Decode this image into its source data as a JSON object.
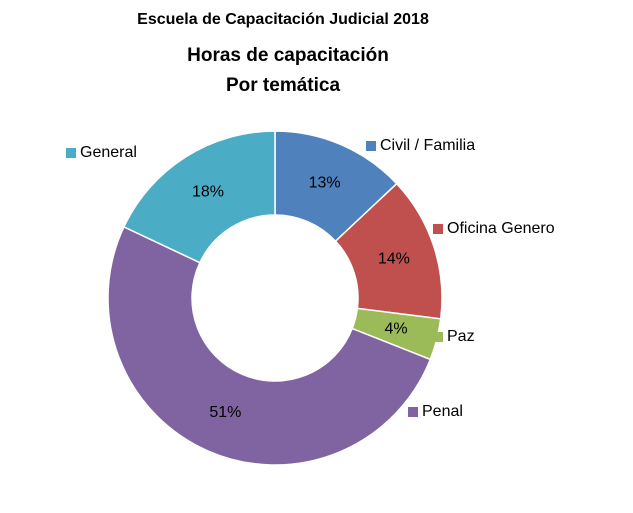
{
  "chart_data": {
    "type": "donut",
    "title": "Escuela de Capacitación Judicial 2018",
    "subtitle": [
      "Horas de capacitación",
      "Por temática"
    ],
    "categories": [
      "Civil / Familia",
      "Oficina Genero",
      "Paz",
      "Penal",
      "General"
    ],
    "values": [
      13,
      14,
      4,
      51,
      18
    ],
    "value_labels": [
      "13%",
      "14%",
      "4%",
      "51%",
      "18%"
    ],
    "colors": [
      "#4f81bd",
      "#c0504d",
      "#9bbb59",
      "#8064a2",
      "#4bacc6"
    ]
  }
}
